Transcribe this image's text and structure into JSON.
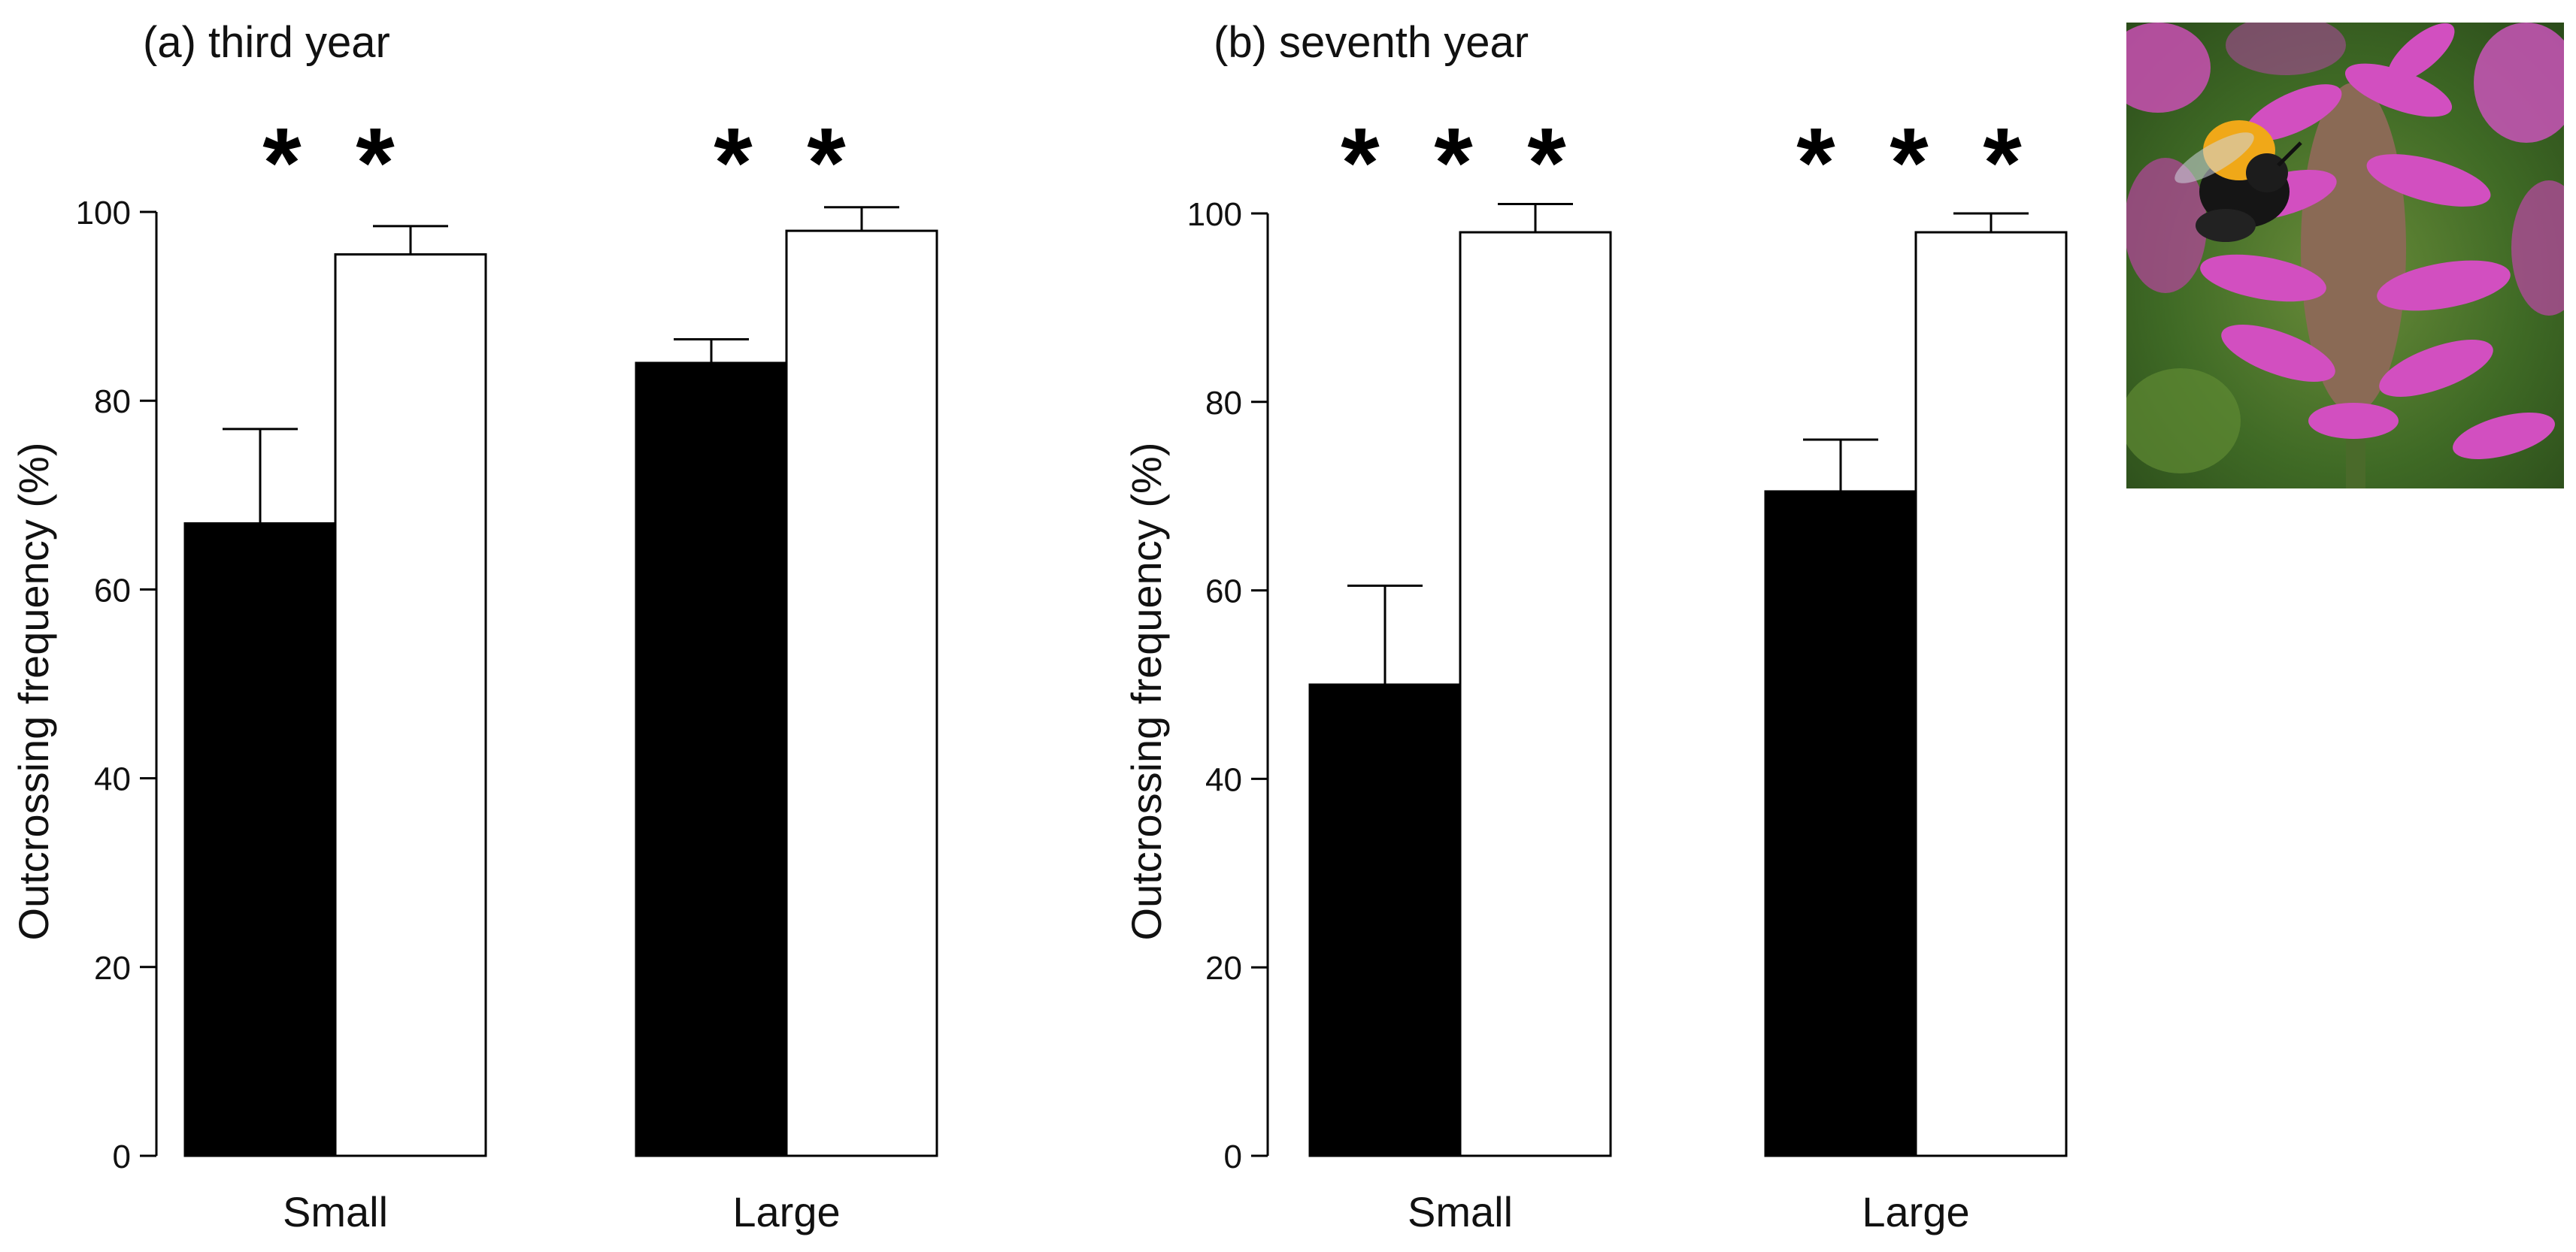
{
  "chart_data": [
    {
      "type": "bar",
      "title": "(a) third year",
      "xlabel": "",
      "ylabel": "Outcrossing frequency (%)",
      "ylim": [
        0,
        100
      ],
      "yticks": [
        "0",
        "20",
        "40",
        "60",
        "80",
        "100"
      ],
      "categories": [
        "Small",
        "Large"
      ],
      "series": [
        {
          "color": "#000000",
          "values": [
            67,
            84
          ],
          "errors": [
            10,
            2.5
          ]
        },
        {
          "color": "#ffffff",
          "values": [
            95.5,
            98
          ],
          "errors": [
            3,
            2.5
          ]
        }
      ],
      "annotations": [
        "* *",
        "* *"
      ],
      "grid": false,
      "legend": "none"
    },
    {
      "type": "bar",
      "title": "(b) seventh year",
      "xlabel": "",
      "ylabel": "Outcrossing frequency (%)",
      "ylim": [
        0,
        100
      ],
      "yticks": [
        "0",
        "20",
        "40",
        "60",
        "80",
        "100"
      ],
      "categories": [
        "Small",
        "Large"
      ],
      "series": [
        {
          "color": "#000000",
          "values": [
            50,
            70.5
          ],
          "errors": [
            10.5,
            5.5
          ]
        },
        {
          "color": "#ffffff",
          "values": [
            98,
            98
          ],
          "errors": [
            3,
            2
          ]
        }
      ],
      "annotations": [
        "* * *",
        "* * *"
      ],
      "grid": false,
      "legend": "none"
    }
  ],
  "photo": {
    "subject": "bumblebee-on-pink-flower",
    "colors": {
      "flower": "#d24fc0",
      "leaf": "#4f8a2e",
      "bee_band": "#f0a818",
      "bee_body": "#151515"
    }
  }
}
